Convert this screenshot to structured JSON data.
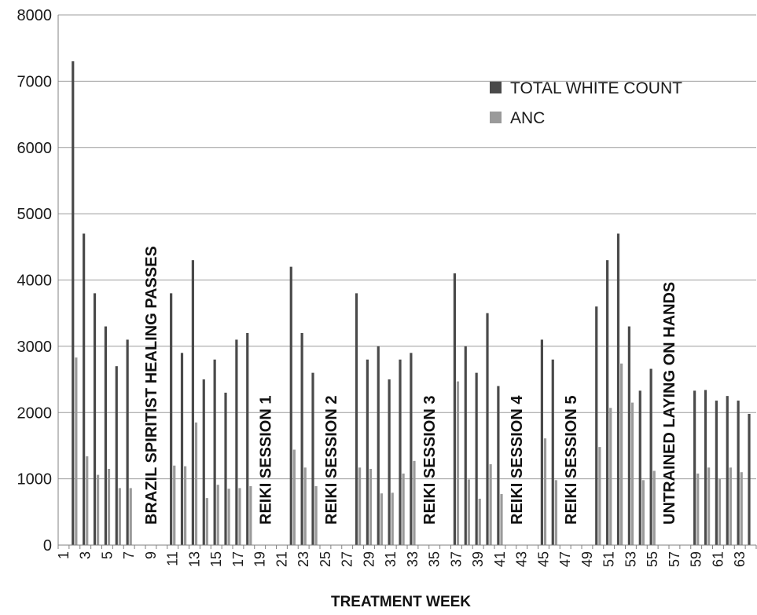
{
  "chart_data": {
    "type": "bar",
    "xlabel": "TREATMENT WEEK",
    "ylim": [
      0,
      8000
    ],
    "yticks": [
      0,
      1000,
      2000,
      3000,
      4000,
      5000,
      6000,
      7000,
      8000
    ],
    "grid": true,
    "legend_position": "top-right",
    "x": [
      1,
      2,
      3,
      4,
      5,
      6,
      7,
      8,
      9,
      10,
      11,
      12,
      13,
      14,
      15,
      16,
      17,
      18,
      19,
      20,
      21,
      22,
      23,
      24,
      25,
      26,
      27,
      28,
      29,
      30,
      31,
      32,
      33,
      34,
      35,
      36,
      37,
      38,
      39,
      40,
      41,
      42,
      43,
      44,
      45,
      46,
      47,
      48,
      49,
      50,
      51,
      52,
      53,
      54,
      55,
      56,
      57,
      58,
      59,
      60,
      61,
      62,
      63,
      64
    ],
    "x_tick_labels": [
      "1",
      "3",
      "5",
      "7",
      "9",
      "11",
      "13",
      "15",
      "17",
      "19",
      "21",
      "23",
      "25",
      "27",
      "29",
      "31",
      "33",
      "35",
      "37",
      "39",
      "41",
      "43",
      "45",
      "47",
      "49",
      "51",
      "53",
      "55",
      "57",
      "59",
      "61",
      "63"
    ],
    "series": [
      {
        "name": "TOTAL WHITE COUNT",
        "color": "#4a4a4a",
        "values": [
          null,
          7300,
          4700,
          3800,
          3300,
          2700,
          3100,
          null,
          null,
          null,
          3800,
          2900,
          4300,
          2500,
          2800,
          2300,
          3100,
          3200,
          null,
          null,
          null,
          4200,
          3200,
          2600,
          null,
          null,
          null,
          3800,
          2800,
          3000,
          2500,
          2800,
          2900,
          null,
          null,
          null,
          4100,
          3000,
          2600,
          3500,
          2400,
          null,
          null,
          null,
          3100,
          2800,
          null,
          null,
          null,
          3600,
          4300,
          4700,
          3300,
          2330,
          2660,
          null,
          null,
          null,
          2330,
          2340,
          2180,
          2250,
          2180,
          1980
        ]
      },
      {
        "name": "ANC",
        "color": "#9a9a9a",
        "values": [
          null,
          2830,
          1340,
          1060,
          1150,
          860,
          860,
          null,
          null,
          null,
          1200,
          1190,
          1850,
          710,
          910,
          850,
          860,
          890,
          null,
          null,
          null,
          1440,
          1170,
          890,
          null,
          null,
          null,
          1170,
          1150,
          780,
          790,
          1080,
          1270,
          null,
          null,
          null,
          2470,
          990,
          700,
          1220,
          770,
          null,
          null,
          null,
          1610,
          980,
          null,
          null,
          null,
          1480,
          2070,
          2740,
          2150,
          980,
          1120,
          null,
          null,
          null,
          1080,
          1170,
          1000,
          1170,
          1100,
          null
        ]
      }
    ],
    "annotations": [
      {
        "text": "BRAZIL SPIRITIST HEALING PASSES",
        "x": 9
      },
      {
        "text": "REIKI SESSION 1",
        "x": 19.5
      },
      {
        "text": "REIKI SESSION 2",
        "x": 25.5
      },
      {
        "text": "REIKI SESSION 3",
        "x": 34.5
      },
      {
        "text": "REIKI SESSION 4",
        "x": 42.5
      },
      {
        "text": "REIKI SESSION 5",
        "x": 47.5
      },
      {
        "text": "UNTRAINED LAYING ON HANDS",
        "x": 56.5
      }
    ]
  }
}
